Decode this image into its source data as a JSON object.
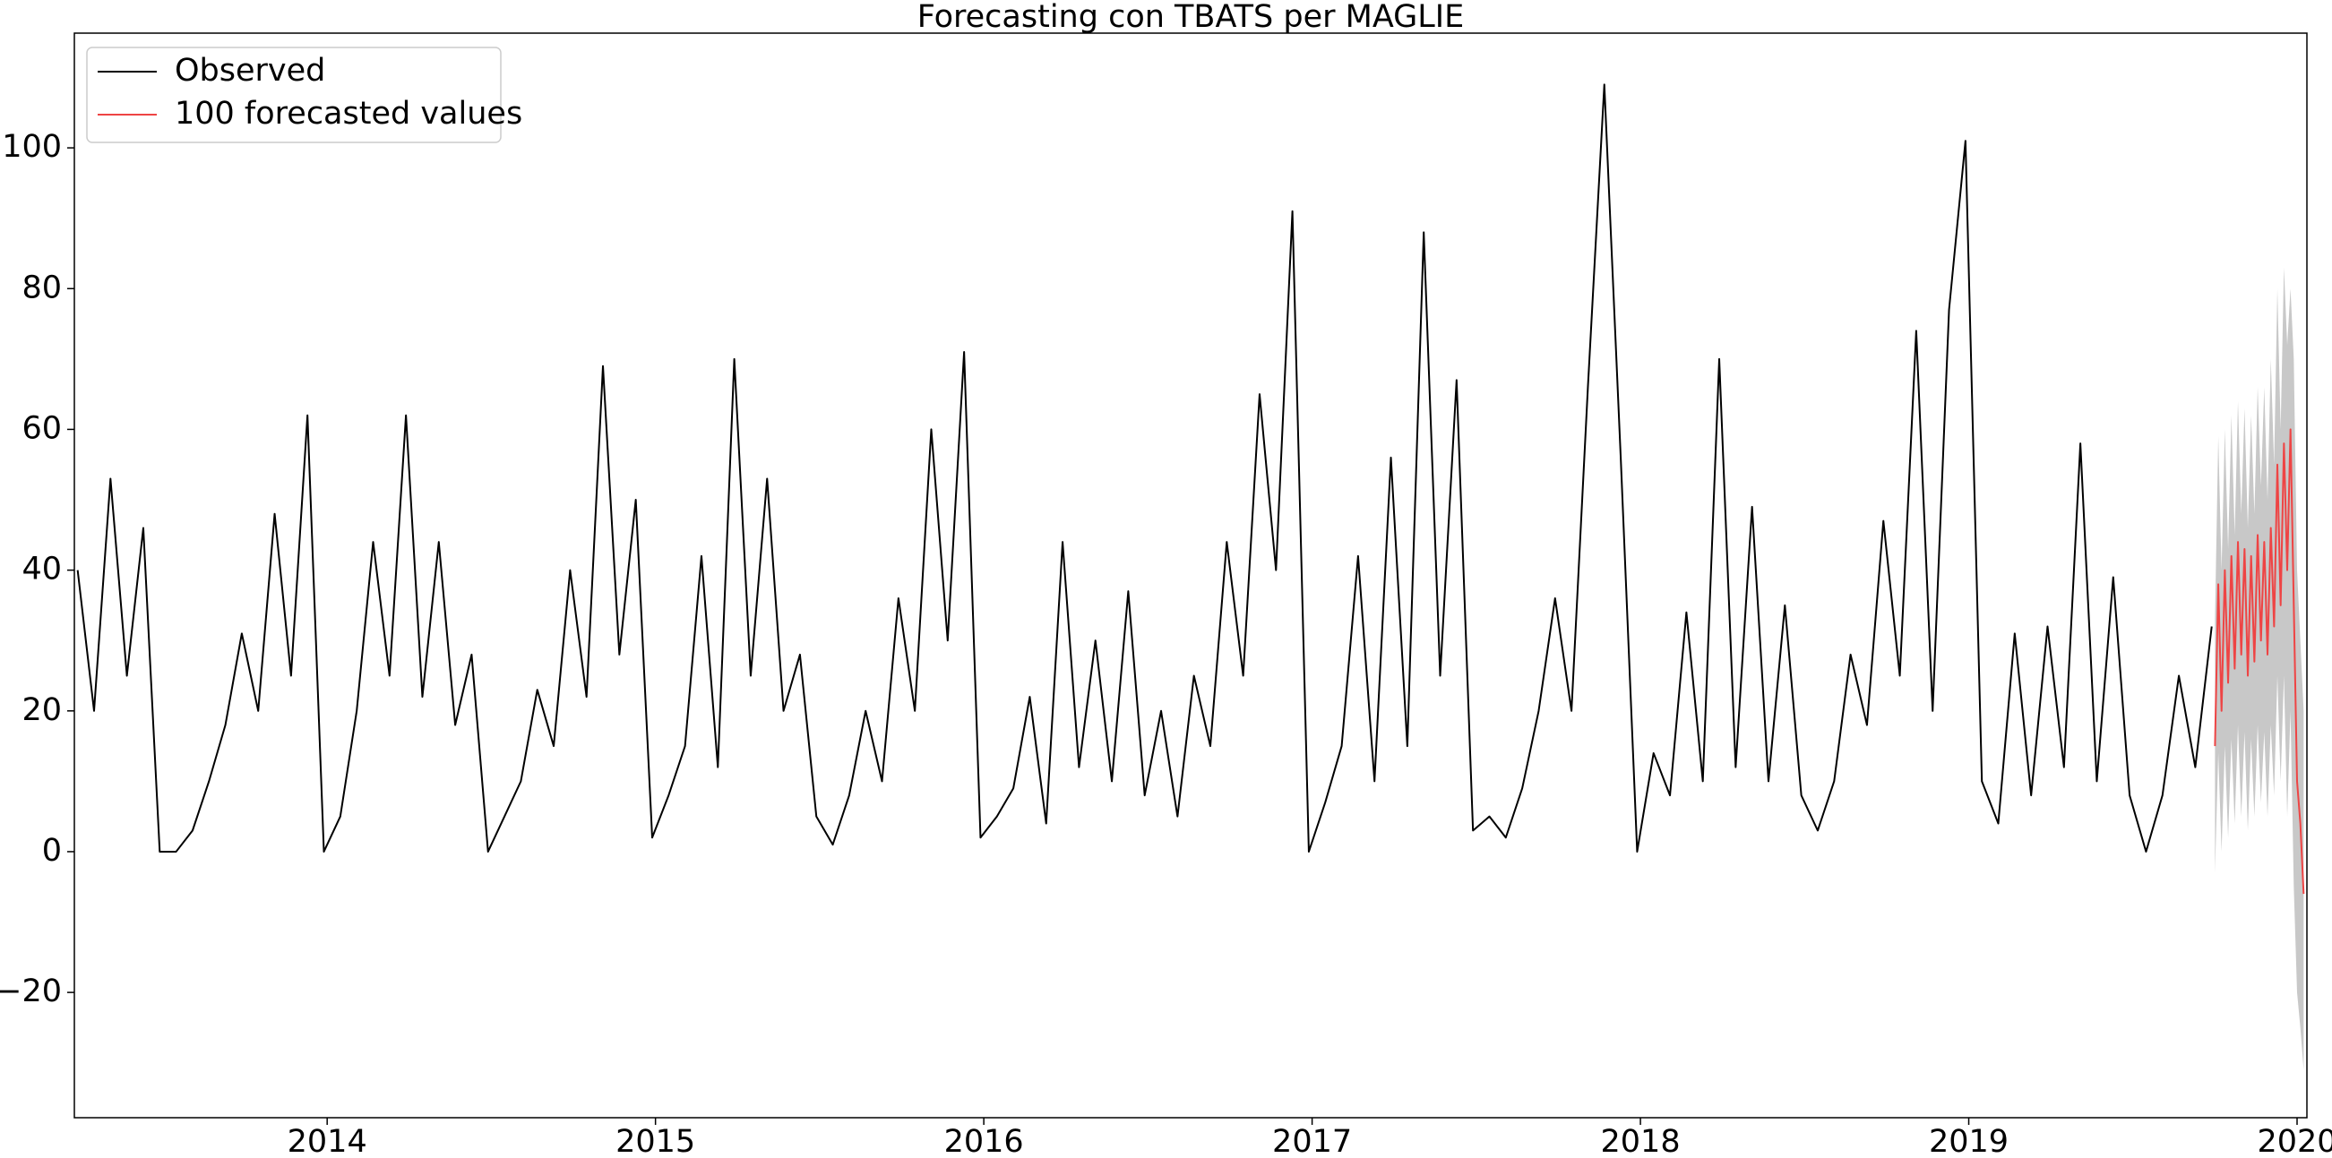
{
  "chart_data": {
    "type": "line",
    "title": "Forecasting con TBATS per MAGLIE",
    "xlim": [
      2013.23,
      2020.03
    ],
    "xticks": [
      2014,
      2015,
      2016,
      2017,
      2018,
      2019,
      2020
    ],
    "ylim": [
      -37.8,
      116.3
    ],
    "yticks": [
      {
        "value": -20,
        "label": "−20"
      },
      0,
      20,
      40,
      60,
      80,
      100
    ],
    "legend": "upper left",
    "series": [
      {
        "name": "Observed",
        "color": "#000000",
        "x": [
          2013.24,
          2013.29,
          2013.34,
          2013.39,
          2013.44,
          2013.49,
          2013.54,
          2013.59,
          2013.64,
          2013.69,
          2013.74,
          2013.79,
          2013.84,
          2013.89,
          2013.94,
          2013.99,
          2014.04,
          2014.09,
          2014.14,
          2014.19,
          2014.24,
          2014.29,
          2014.34,
          2014.39,
          2014.44,
          2014.49,
          2014.54,
          2014.59,
          2014.64,
          2014.69,
          2014.74,
          2014.79,
          2014.84,
          2014.89,
          2014.94,
          2014.99,
          2015.04,
          2015.09,
          2015.14,
          2015.19,
          2015.24,
          2015.29,
          2015.34,
          2015.39,
          2015.44,
          2015.49,
          2015.54,
          2015.59,
          2015.64,
          2015.69,
          2015.74,
          2015.79,
          2015.84,
          2015.89,
          2015.94,
          2015.99,
          2016.04,
          2016.09,
          2016.14,
          2016.19,
          2016.24,
          2016.29,
          2016.34,
          2016.39,
          2016.44,
          2016.49,
          2016.54,
          2016.59,
          2016.64,
          2016.69,
          2016.74,
          2016.79,
          2016.84,
          2016.89,
          2016.94,
          2016.99,
          2017.04,
          2017.09,
          2017.14,
          2017.19,
          2017.24,
          2017.29,
          2017.34,
          2017.39,
          2017.44,
          2017.49,
          2017.54,
          2017.59,
          2017.64,
          2017.69,
          2017.74,
          2017.79,
          2017.84,
          2017.89,
          2017.94,
          2017.99,
          2018.04,
          2018.09,
          2018.14,
          2018.19,
          2018.24,
          2018.29,
          2018.34,
          2018.39,
          2018.44,
          2018.49,
          2018.54,
          2018.59,
          2018.64,
          2018.69,
          2018.74,
          2018.79,
          2018.84,
          2018.89,
          2018.94,
          2018.99,
          2019.04,
          2019.09,
          2019.14,
          2019.19,
          2019.24,
          2019.29,
          2019.34,
          2019.39,
          2019.44,
          2019.49,
          2019.54,
          2019.59,
          2019.64,
          2019.69,
          2019.74
        ],
        "values": [
          40,
          20,
          53,
          25,
          46,
          0,
          0,
          3,
          10,
          18,
          31,
          20,
          48,
          25,
          62,
          0,
          5,
          20,
          44,
          25,
          62,
          22,
          44,
          18,
          28,
          0,
          5,
          10,
          23,
          15,
          40,
          22,
          69,
          28,
          50,
          2,
          8,
          15,
          42,
          12,
          70,
          25,
          53,
          20,
          28,
          5,
          1,
          8,
          20,
          10,
          36,
          20,
          60,
          30,
          71,
          2,
          5,
          9,
          22,
          4,
          44,
          12,
          30,
          10,
          37,
          8,
          20,
          5,
          25,
          15,
          44,
          25,
          65,
          40,
          91,
          0,
          7,
          15,
          42,
          10,
          56,
          15,
          88,
          25,
          67,
          3,
          5,
          2,
          9,
          20,
          36,
          20,
          66,
          109,
          56,
          0,
          14,
          8,
          34,
          10,
          70,
          12,
          49,
          10,
          35,
          8,
          3,
          10,
          28,
          18,
          47,
          25,
          74,
          20,
          77,
          101,
          10,
          4,
          31,
          8,
          32,
          12,
          58,
          10,
          39,
          8,
          0,
          8,
          25,
          12,
          32
        ]
      },
      {
        "name": "100 forecasted values",
        "color": "#ee4444",
        "band_color": "#c8c8c8",
        "x": [
          2019.75,
          2019.76,
          2019.77,
          2019.78,
          2019.79,
          2019.8,
          2019.81,
          2019.82,
          2019.83,
          2019.84,
          2019.85,
          2019.86,
          2019.87,
          2019.88,
          2019.89,
          2019.9,
          2019.91,
          2019.92,
          2019.93,
          2019.94,
          2019.95,
          2019.96,
          2019.97,
          2019.98,
          2019.99,
          2020.0,
          2020.01,
          2020.02
        ],
        "values": [
          15,
          38,
          20,
          40,
          24,
          42,
          26,
          44,
          28,
          43,
          25,
          42,
          27,
          45,
          30,
          44,
          28,
          46,
          32,
          55,
          35,
          58,
          40,
          60,
          35,
          10,
          4,
          -6
        ],
        "lower": [
          -3,
          14,
          0,
          15,
          2,
          16,
          4,
          18,
          5,
          17,
          3,
          16,
          5,
          18,
          7,
          17,
          5,
          18,
          8,
          25,
          10,
          25,
          5,
          20,
          -5,
          -20,
          -25,
          -31
        ],
        "upper": [
          33,
          59,
          40,
          60,
          43,
          62,
          45,
          64,
          48,
          63,
          46,
          62,
          48,
          66,
          52,
          66,
          50,
          70,
          55,
          80,
          60,
          83,
          72,
          80,
          70,
          40,
          30,
          20
        ]
      }
    ]
  }
}
